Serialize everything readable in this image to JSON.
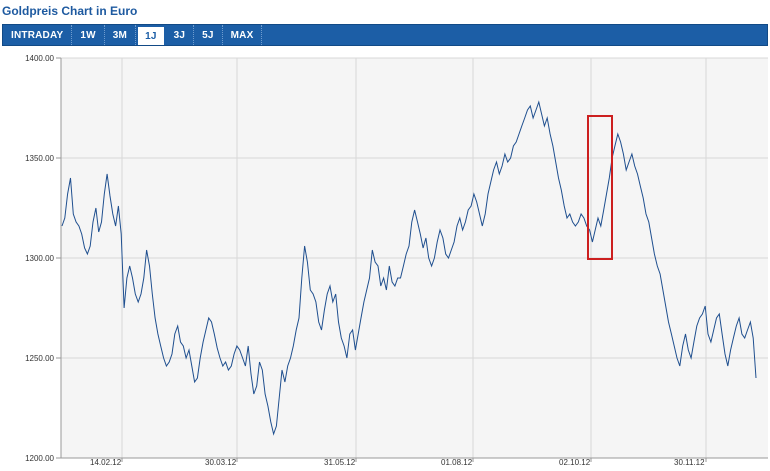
{
  "header": {
    "title": "Goldpreis Chart in Euro"
  },
  "tabs": [
    {
      "label": "INTRADAY",
      "active": false
    },
    {
      "label": "1W",
      "active": false
    },
    {
      "label": "3M",
      "active": false
    },
    {
      "label": "1J",
      "active": true
    },
    {
      "label": "3J",
      "active": false
    },
    {
      "label": "5J",
      "active": false
    },
    {
      "label": "MAX",
      "active": false
    }
  ],
  "colors": {
    "line": "#1f4f8f",
    "plot_bg": "#f5f5f5",
    "grid": "#d8d8d8",
    "highlight": "#cc1f1f",
    "tabbar": "#1c5ea6",
    "title": "#1e5aa0"
  },
  "chart_data": {
    "type": "line",
    "title": "Goldpreis Chart in Euro",
    "xlabel": "",
    "ylabel": "",
    "ylim": [
      1200,
      1400
    ],
    "y_ticks": [
      "1200.00",
      "1250.00",
      "1300.00",
      "1350.00",
      "1400.00"
    ],
    "x_ticks": [
      "14.02.12",
      "30.03.12",
      "31.05.12",
      "01.08.12",
      "02.10.12",
      "30.11.12"
    ],
    "grid": true,
    "series": [
      {
        "values": [
          1316,
          1320,
          1332,
          1340,
          1322,
          1318,
          1316,
          1312,
          1305,
          1302,
          1306,
          1318,
          1325,
          1313,
          1318,
          1332,
          1342,
          1331,
          1322,
          1316,
          1326,
          1312,
          1275,
          1290,
          1296,
          1290,
          1282,
          1278,
          1282,
          1290,
          1304,
          1296,
          1282,
          1270,
          1262,
          1256,
          1250,
          1246,
          1248,
          1252,
          1262,
          1266,
          1258,
          1256,
          1250,
          1254,
          1246,
          1238,
          1240,
          1250,
          1258,
          1264,
          1270,
          1268,
          1262,
          1255,
          1250,
          1246,
          1248,
          1244,
          1246,
          1252,
          1256,
          1254,
          1250,
          1246,
          1256,
          1242,
          1232,
          1236,
          1248,
          1244,
          1232,
          1226,
          1218,
          1212,
          1216,
          1230,
          1244,
          1238,
          1246,
          1250,
          1256,
          1264,
          1270,
          1290,
          1306,
          1298,
          1284,
          1282,
          1278,
          1268,
          1264,
          1274,
          1282,
          1286,
          1278,
          1282,
          1268,
          1260,
          1256,
          1250,
          1262,
          1264,
          1254,
          1262,
          1270,
          1278,
          1284,
          1290,
          1304,
          1298,
          1296,
          1286,
          1290,
          1284,
          1296,
          1288,
          1286,
          1290,
          1290,
          1296,
          1302,
          1306,
          1318,
          1324,
          1318,
          1312,
          1305,
          1310,
          1300,
          1296,
          1300,
          1308,
          1314,
          1310,
          1302,
          1300,
          1304,
          1308,
          1316,
          1320,
          1314,
          1318,
          1324,
          1326,
          1332,
          1328,
          1322,
          1316,
          1322,
          1332,
          1338,
          1344,
          1348,
          1342,
          1346,
          1352,
          1348,
          1350,
          1356,
          1358,
          1362,
          1366,
          1370,
          1374,
          1376,
          1370,
          1374,
          1378,
          1372,
          1366,
          1370,
          1362,
          1356,
          1348,
          1340,
          1334,
          1326,
          1320,
          1322,
          1318,
          1316,
          1318,
          1322,
          1320,
          1316,
          1314,
          1308,
          1314,
          1320,
          1316,
          1324,
          1332,
          1340,
          1350,
          1356,
          1362,
          1358,
          1352,
          1344,
          1348,
          1352,
          1346,
          1342,
          1336,
          1330,
          1322,
          1318,
          1310,
          1302,
          1296,
          1292,
          1284,
          1276,
          1268,
          1262,
          1256,
          1250,
          1246,
          1256,
          1262,
          1254,
          1250,
          1258,
          1266,
          1270,
          1272,
          1276,
          1262,
          1258,
          1264,
          1270,
          1272,
          1262,
          1252,
          1246,
          1254,
          1260,
          1266,
          1270,
          1262,
          1260,
          1264,
          1268,
          1260,
          1240
        ]
      }
    ]
  }
}
